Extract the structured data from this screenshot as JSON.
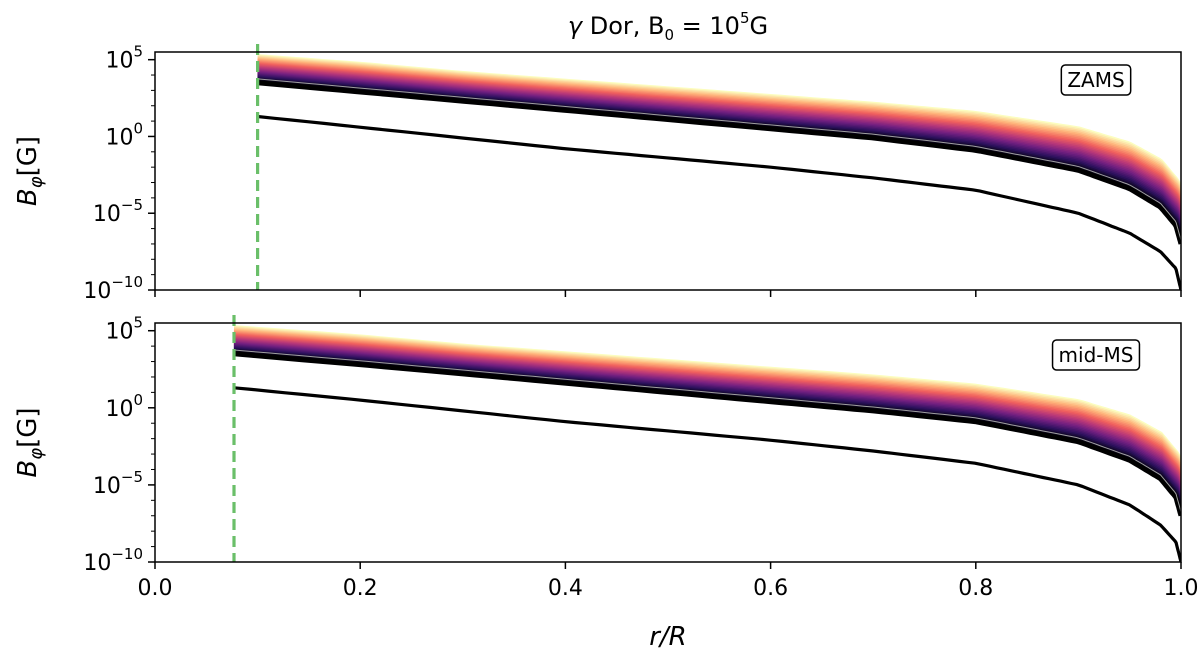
{
  "chart_data": {
    "type": "line",
    "title": "γ Dor,  B₀ = 10⁵G",
    "xlabel": "r/R",
    "ylabel": "B_φ[G]",
    "xlim": [
      0.0,
      1.0
    ],
    "ylim_log10": [
      -10,
      5.5
    ],
    "y_scale": "log",
    "x_ticks": [
      {
        "value": 0.0,
        "label": "0.0"
      },
      {
        "value": 0.2,
        "label": "0.2"
      },
      {
        "value": 0.4,
        "label": "0.4"
      },
      {
        "value": 0.6,
        "label": "0.6"
      },
      {
        "value": 0.8,
        "label": "0.8"
      },
      {
        "value": 1.0,
        "label": "1.0"
      }
    ],
    "y_ticks": [
      {
        "exp": 5,
        "label": "10",
        "sup": "5"
      },
      {
        "exp": 0,
        "label": "10",
        "sup": "0"
      },
      {
        "exp": -5,
        "label": "10",
        "sup": "−5"
      },
      {
        "exp": -10,
        "label": "10",
        "sup": "−10"
      }
    ],
    "colormap": [
      "#000004",
      "#2c115f",
      "#721f81",
      "#b73779",
      "#f1605d",
      "#feb078",
      "#fcfdbf"
    ],
    "line_color": "#000000",
    "band_edge_color": "#a0a0a0",
    "boundary_color": "#6abf69",
    "panels": [
      {
        "stage": "ZAMS",
        "boundary_x": 0.1,
        "x": [
          0.1,
          0.2,
          0.3,
          0.4,
          0.5,
          0.6,
          0.7,
          0.8,
          0.9,
          0.95,
          0.98,
          0.995,
          1.0
        ],
        "lowest_curve_log10B": [
          1.3,
          0.6,
          -0.1,
          -0.8,
          -1.4,
          -2.0,
          -2.7,
          -3.5,
          -5.0,
          -6.3,
          -7.5,
          -8.6,
          -10.0
        ],
        "band_bottom_log10B": [
          3.5,
          2.9,
          2.3,
          1.7,
          1.1,
          0.5,
          -0.1,
          -0.9,
          -2.2,
          -3.4,
          -4.6,
          -5.8,
          -7.0
        ],
        "band_top_log10B": [
          5.2,
          4.7,
          4.1,
          3.6,
          3.1,
          2.6,
          2.1,
          1.5,
          0.5,
          -0.5,
          -1.6,
          -2.8,
          -3.3
        ]
      },
      {
        "stage": "mid-MS",
        "boundary_x": 0.077,
        "x": [
          0.077,
          0.2,
          0.3,
          0.4,
          0.5,
          0.6,
          0.7,
          0.8,
          0.9,
          0.95,
          0.98,
          0.995,
          1.0
        ],
        "lowest_curve_log10B": [
          1.3,
          0.5,
          -0.2,
          -0.9,
          -1.5,
          -2.1,
          -2.8,
          -3.6,
          -5.0,
          -6.3,
          -7.6,
          -8.7,
          -10.0
        ],
        "band_bottom_log10B": [
          3.5,
          2.8,
          2.2,
          1.6,
          1.0,
          0.4,
          -0.2,
          -0.9,
          -2.2,
          -3.4,
          -4.6,
          -5.8,
          -7.0
        ],
        "band_top_log10B": [
          5.2,
          4.6,
          4.0,
          3.5,
          3.0,
          2.5,
          2.0,
          1.4,
          0.4,
          -0.6,
          -1.7,
          -2.9,
          -3.4
        ]
      }
    ]
  }
}
